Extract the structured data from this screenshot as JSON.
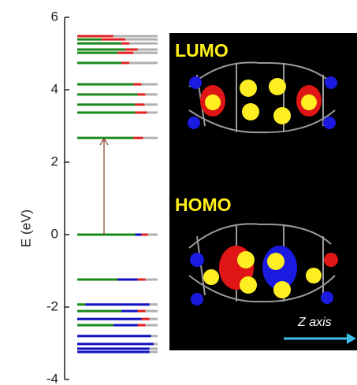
{
  "chart_data": {
    "type": "levels",
    "y_label": "E (eV)",
    "ylim": [
      -4,
      6
    ],
    "yticks": [
      -4,
      -2,
      0,
      2,
      4,
      6
    ],
    "levels": [
      {
        "energy": 5.48,
        "parts": [
          {
            "color": "#e02020",
            "share": 0.45
          },
          {
            "color": "#b0b0b0",
            "share": 0.55
          }
        ]
      },
      {
        "energy": 5.39,
        "parts": [
          {
            "color": "#1a8a1a",
            "share": 0.3
          },
          {
            "color": "#e02020",
            "share": 0.3
          },
          {
            "color": "#b0b0b0",
            "share": 0.4
          }
        ]
      },
      {
        "energy": 5.28,
        "parts": [
          {
            "color": "#1a8a1a",
            "share": 0.55
          },
          {
            "color": "#e02020",
            "share": 0.1
          },
          {
            "color": "#b0b0b0",
            "share": 0.35
          }
        ]
      },
      {
        "energy": 5.11,
        "parts": [
          {
            "color": "#1a8a1a",
            "share": 0.6
          },
          {
            "color": "#e02020",
            "share": 0.15
          },
          {
            "color": "#b0b0b0",
            "share": 0.25
          }
        ]
      },
      {
        "energy": 5.02,
        "parts": [
          {
            "color": "#1a8a1a",
            "share": 0.5
          },
          {
            "color": "#e02020",
            "share": 0.2
          },
          {
            "color": "#b0b0b0",
            "share": 0.3
          }
        ]
      },
      {
        "energy": 4.74,
        "parts": [
          {
            "color": "#1a8a1a",
            "share": 0.55
          },
          {
            "color": "#e02020",
            "share": 0.1
          },
          {
            "color": "#b0b0b0",
            "share": 0.35
          }
        ]
      },
      {
        "energy": 4.15,
        "parts": [
          {
            "color": "#1a8a1a",
            "share": 0.7
          },
          {
            "color": "#e02020",
            "share": 0.1
          },
          {
            "color": "#b0b0b0",
            "share": 0.2
          }
        ]
      },
      {
        "energy": 3.87,
        "parts": [
          {
            "color": "#1a8a1a",
            "share": 0.75
          },
          {
            "color": "#e02020",
            "share": 0.1
          },
          {
            "color": "#b0b0b0",
            "share": 0.15
          }
        ]
      },
      {
        "energy": 3.59,
        "parts": [
          {
            "color": "#1a8a1a",
            "share": 0.72
          },
          {
            "color": "#e02020",
            "share": 0.12
          },
          {
            "color": "#b0b0b0",
            "share": 0.16
          }
        ]
      },
      {
        "energy": 3.37,
        "parts": [
          {
            "color": "#1a8a1a",
            "share": 0.72
          },
          {
            "color": "#e02020",
            "share": 0.15
          },
          {
            "color": "#b0b0b0",
            "share": 0.13
          }
        ]
      },
      {
        "energy": 2.67,
        "parts": [
          {
            "color": "#1a8a1a",
            "share": 0.7
          },
          {
            "color": "#e02020",
            "share": 0.12
          },
          {
            "color": "#b0b0b0",
            "share": 0.18
          }
        ]
      },
      {
        "energy": 0,
        "parts": [
          {
            "color": "#1a8a1a",
            "share": 0.72
          },
          {
            "color": "#1010c0",
            "share": 0.08
          },
          {
            "color": "#e02020",
            "share": 0.08
          },
          {
            "color": "#b0b0b0",
            "share": 0.12
          }
        ]
      },
      {
        "energy": -1.24,
        "parts": [
          {
            "color": "#1a8a1a",
            "share": 0.5
          },
          {
            "color": "#1010c0",
            "share": 0.25
          },
          {
            "color": "#e02020",
            "share": 0.1
          },
          {
            "color": "#b0b0b0",
            "share": 0.15
          }
        ]
      },
      {
        "energy": -1.93,
        "parts": [
          {
            "color": "#1a8a1a",
            "share": 0.1
          },
          {
            "color": "#1010c0",
            "share": 0.8
          },
          {
            "color": "#b0b0b0",
            "share": 0.1
          }
        ]
      },
      {
        "energy": -2.11,
        "parts": [
          {
            "color": "#1a8a1a",
            "share": 0.55
          },
          {
            "color": "#1010c0",
            "share": 0.2
          },
          {
            "color": "#e02020",
            "share": 0.1
          },
          {
            "color": "#b0b0b0",
            "share": 0.15
          }
        ]
      },
      {
        "energy": -2.33,
        "parts": [
          {
            "color": "#1010c0",
            "share": 0.8
          },
          {
            "color": "#e02020",
            "share": 0.1
          },
          {
            "color": "#b0b0b0",
            "share": 0.1
          }
        ]
      },
      {
        "energy": -2.5,
        "parts": [
          {
            "color": "#1a8a1a",
            "share": 0.45
          },
          {
            "color": "#1010c0",
            "share": 0.3
          },
          {
            "color": "#e02020",
            "share": 0.1
          },
          {
            "color": "#b0b0b0",
            "share": 0.15
          }
        ]
      },
      {
        "energy": -2.8,
        "parts": [
          {
            "color": "#1010c0",
            "share": 0.92
          },
          {
            "color": "#b0b0b0",
            "share": 0.08
          }
        ]
      },
      {
        "energy": -3.02,
        "parts": [
          {
            "color": "#1010c0",
            "share": 0.95
          },
          {
            "color": "#b0b0b0",
            "share": 0.05
          }
        ]
      },
      {
        "energy": -3.15,
        "parts": [
          {
            "color": "#1010c0",
            "share": 0.9
          },
          {
            "color": "#b0b0b0",
            "share": 0.1
          }
        ]
      },
      {
        "energy": -3.24,
        "parts": [
          {
            "color": "#1010c0",
            "share": 0.9
          },
          {
            "color": "#b0b0b0",
            "share": 0.1
          }
        ]
      }
    ],
    "transition": {
      "from": 0,
      "to": 2.67,
      "color": "#8b3a2a"
    },
    "panel_labels": [
      "LUMO",
      "HOMO"
    ],
    "axis_note": "Z axis"
  }
}
